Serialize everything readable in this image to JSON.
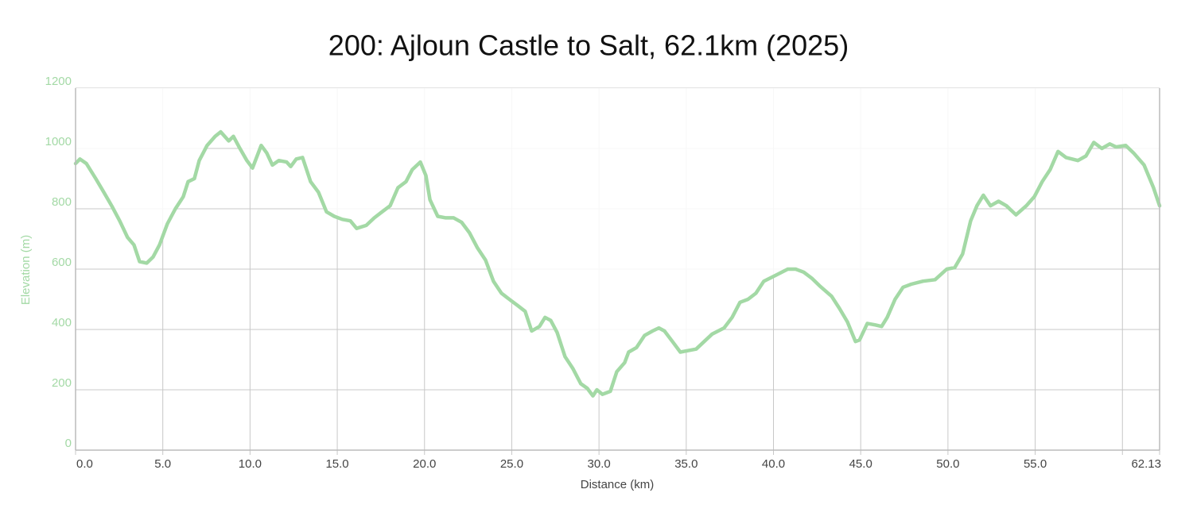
{
  "chart_data": {
    "type": "line",
    "title": "200: Ajloun Castle to Salt, 62.1km (2025)",
    "x_label": "Distance (km)",
    "y_label": "Elevation (m)",
    "color": "#a3d9a5",
    "grid": true,
    "xlim": [
      0,
      62.13
    ],
    "ylim": [
      0,
      1200
    ],
    "xticks": [
      {
        "value": 0,
        "label": "0.0"
      },
      {
        "value": 5,
        "label": "5.0"
      },
      {
        "value": 10,
        "label": "10.0"
      },
      {
        "value": 15,
        "label": "15.0"
      },
      {
        "value": 20,
        "label": "20.0"
      },
      {
        "value": 25,
        "label": "25.0"
      },
      {
        "value": 30,
        "label": "30.0"
      },
      {
        "value": 35,
        "label": "35.0"
      },
      {
        "value": 40,
        "label": "40.0"
      },
      {
        "value": 45,
        "label": "45.0"
      },
      {
        "value": 50,
        "label": "50.0"
      },
      {
        "value": 55,
        "label": "55.0"
      },
      {
        "value": 60,
        "label": null
      },
      62.13
    ],
    "yticks": [
      0,
      200,
      400,
      600,
      800,
      1000,
      1200
    ],
    "x": [
      0,
      0.25,
      0.62,
      1.16,
      1.62,
      2.07,
      2.53,
      2.98,
      3.35,
      3.67,
      4.08,
      4.44,
      4.81,
      5.26,
      5.72,
      6.17,
      6.45,
      6.81,
      7.09,
      7.54,
      8.0,
      8.32,
      8.78,
      9.05,
      9.37,
      9.82,
      10.14,
      10.64,
      10.96,
      11.28,
      11.65,
      12.1,
      12.33,
      12.65,
      13.01,
      13.47,
      13.92,
      14.38,
      14.83,
      15.29,
      15.75,
      16.11,
      16.66,
      17.12,
      17.57,
      18.03,
      18.48,
      18.94,
      19.3,
      19.76,
      20.08,
      20.31,
      20.76,
      21.22,
      21.67,
      22.13,
      22.58,
      23.04,
      23.5,
      23.95,
      24.41,
      24.86,
      25.32,
      25.77,
      26.14,
      26.59,
      26.91,
      27.23,
      27.6,
      28.05,
      28.51,
      28.96,
      29.33,
      29.65,
      29.88,
      30.2,
      30.65,
      31.02,
      31.47,
      31.7,
      32.15,
      32.61,
      33.07,
      33.43,
      33.75,
      34.21,
      34.66,
      35.12,
      35.57,
      36.03,
      36.49,
      37.17,
      37.63,
      38.08,
      38.54,
      38.99,
      39.45,
      40.14,
      40.82,
      41.27,
      41.73,
      42.19,
      42.64,
      43.33,
      43.78,
      44.24,
      44.7,
      44.93,
      45.38,
      45.84,
      46.2,
      46.52,
      46.97,
      47.43,
      47.89,
      48.57,
      49.26,
      49.93,
      50.39,
      50.84,
      51.3,
      51.66,
      52.03,
      52.44,
      52.9,
      53.35,
      53.9,
      54.49,
      54.95,
      55.4,
      55.86,
      56.31,
      56.77,
      57.45,
      57.91,
      58.36,
      58.82,
      59.27,
      59.64,
      60.19,
      60.64,
      61.24,
      61.78,
      62.13
    ],
    "values": [
      950,
      965,
      950,
      900,
      855,
      810,
      760,
      705,
      680,
      625,
      620,
      640,
      680,
      750,
      800,
      840,
      890,
      900,
      960,
      1010,
      1040,
      1055,
      1025,
      1040,
      1005,
      960,
      935,
      1010,
      985,
      945,
      960,
      955,
      940,
      965,
      970,
      890,
      855,
      790,
      775,
      765,
      760,
      735,
      745,
      770,
      790,
      810,
      870,
      890,
      930,
      955,
      910,
      830,
      775,
      770,
      770,
      755,
      720,
      670,
      630,
      560,
      520,
      500,
      480,
      460,
      395,
      410,
      440,
      430,
      390,
      310,
      270,
      220,
      205,
      180,
      200,
      185,
      195,
      260,
      290,
      325,
      340,
      380,
      395,
      405,
      395,
      360,
      325,
      330,
      335,
      360,
      385,
      405,
      440,
      490,
      500,
      520,
      560,
      580,
      600,
      600,
      590,
      570,
      545,
      510,
      470,
      425,
      360,
      365,
      420,
      415,
      410,
      440,
      500,
      540,
      550,
      560,
      565,
      600,
      605,
      650,
      760,
      810,
      845,
      810,
      825,
      810,
      780,
      810,
      840,
      890,
      930,
      990,
      970,
      960,
      975,
      1020,
      1000,
      1015,
      1005,
      1010,
      985,
      945,
      870,
      810
    ]
  }
}
